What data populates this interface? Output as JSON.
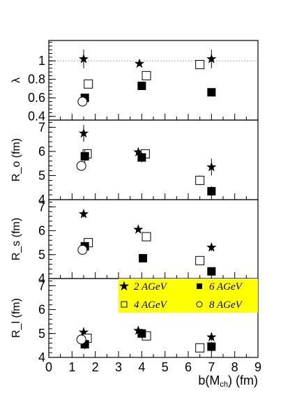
{
  "chart_data": {
    "type": "scatter",
    "xlabel": "b(M_ch) (fm)",
    "xlim": [
      0,
      9
    ],
    "x_ticks": [
      "0",
      "1",
      "2",
      "3",
      "4",
      "5",
      "6",
      "7",
      "8",
      "9"
    ],
    "legend": {
      "placement": "inside bottom panel, top-right",
      "background": "#ffff00",
      "entries": [
        {
          "label": "2 AGeV",
          "marker": "star"
        },
        {
          "label": "6 AGeV",
          "marker": "filled-square"
        },
        {
          "label": "4 AGeV",
          "marker": "open-square"
        },
        {
          "label": "8 AGeV",
          "marker": "open-circle"
        }
      ]
    },
    "panels": [
      {
        "ylabel": "λ",
        "ylim": [
          0.36,
          1.22
        ],
        "y_ticks": [
          "0.4",
          "0.6",
          "0.8",
          "1"
        ],
        "reference_line": 1,
        "series": [
          {
            "name": "2 AGeV",
            "marker": "star",
            "points": [
              [
                1.5,
                1.02,
                0.1
              ],
              [
                3.9,
                0.97,
                0
              ],
              [
                7.0,
                1.02,
                0.1
              ]
            ]
          },
          {
            "name": "4 AGeV",
            "marker": "open-square",
            "points": [
              [
                1.7,
                0.75,
                0
              ],
              [
                4.2,
                0.84,
                0
              ],
              [
                6.5,
                0.96,
                0.04
              ]
            ]
          },
          {
            "name": "6 AGeV",
            "marker": "filled-square",
            "points": [
              [
                1.55,
                0.6,
                0
              ],
              [
                4.0,
                0.73,
                0
              ],
              [
                7.0,
                0.66,
                0
              ]
            ]
          },
          {
            "name": "8 AGeV",
            "marker": "open-circle",
            "points": [
              [
                1.45,
                0.56,
                0
              ]
            ]
          }
        ]
      },
      {
        "ylabel": "R_o (fm)",
        "ylim": [
          4,
          7.3
        ],
        "y_ticks": [
          "4",
          "5",
          "6",
          "7"
        ],
        "series": [
          {
            "name": "2 AGeV",
            "marker": "star",
            "points": [
              [
                1.5,
                6.75,
                0.35
              ],
              [
                3.85,
                5.97,
                0
              ],
              [
                7.0,
                5.35,
                0.35
              ]
            ]
          },
          {
            "name": "4 AGeV",
            "marker": "open-square",
            "points": [
              [
                1.65,
                5.9,
                0.2
              ],
              [
                4.15,
                5.9,
                0
              ],
              [
                6.5,
                4.8,
                0.2
              ]
            ]
          },
          {
            "name": "6 AGeV",
            "marker": "filled-square",
            "points": [
              [
                1.55,
                5.8,
                0.25
              ],
              [
                4.0,
                5.75,
                0.2
              ],
              [
                7.0,
                4.35,
                0.2
              ]
            ]
          },
          {
            "name": "8 AGeV",
            "marker": "open-circle",
            "points": [
              [
                1.4,
                5.4,
                0
              ]
            ]
          }
        ]
      },
      {
        "ylabel": "R_s (fm)",
        "ylim": [
          4,
          7.3
        ],
        "y_ticks": [
          "4",
          "5",
          "6",
          "7"
        ],
        "series": [
          {
            "name": "2 AGeV",
            "marker": "star",
            "points": [
              [
                1.5,
                6.7,
                0.15
              ],
              [
                3.85,
                6.05,
                0
              ],
              [
                7.0,
                5.3,
                0.15
              ]
            ]
          },
          {
            "name": "4 AGeV",
            "marker": "open-square",
            "points": [
              [
                1.7,
                5.5,
                0
              ],
              [
                4.2,
                5.75,
                0
              ],
              [
                6.5,
                4.75,
                0
              ]
            ]
          },
          {
            "name": "6 AGeV",
            "marker": "filled-square",
            "points": [
              [
                1.55,
                5.35,
                0
              ],
              [
                4.05,
                4.85,
                0
              ],
              [
                7.0,
                4.3,
                0
              ]
            ]
          },
          {
            "name": "8 AGeV",
            "marker": "open-circle",
            "points": [
              [
                1.45,
                5.2,
                0
              ]
            ]
          }
        ]
      },
      {
        "ylabel": "R_l (fm)",
        "ylim": [
          4,
          7.3
        ],
        "y_ticks": [
          "4",
          "5",
          "6",
          "7"
        ],
        "series": [
          {
            "name": "2 AGeV",
            "marker": "star",
            "points": [
              [
                1.5,
                5.05,
                0.2
              ],
              [
                3.85,
                5.12,
                0
              ],
              [
                7.0,
                4.85,
                0.15
              ]
            ]
          },
          {
            "name": "4 AGeV",
            "marker": "open-square",
            "points": [
              [
                1.65,
                4.8,
                0
              ],
              [
                4.2,
                4.9,
                0
              ],
              [
                6.5,
                4.4,
                0
              ]
            ]
          },
          {
            "name": "6 AGeV",
            "marker": "filled-square",
            "points": [
              [
                1.55,
                4.55,
                0.2
              ],
              [
                4.0,
                5.0,
                0.15
              ],
              [
                7.0,
                4.45,
                0.2
              ]
            ]
          },
          {
            "name": "8 AGeV",
            "marker": "open-circle",
            "points": [
              [
                1.4,
                4.75,
                0.2
              ]
            ]
          }
        ]
      }
    ]
  }
}
